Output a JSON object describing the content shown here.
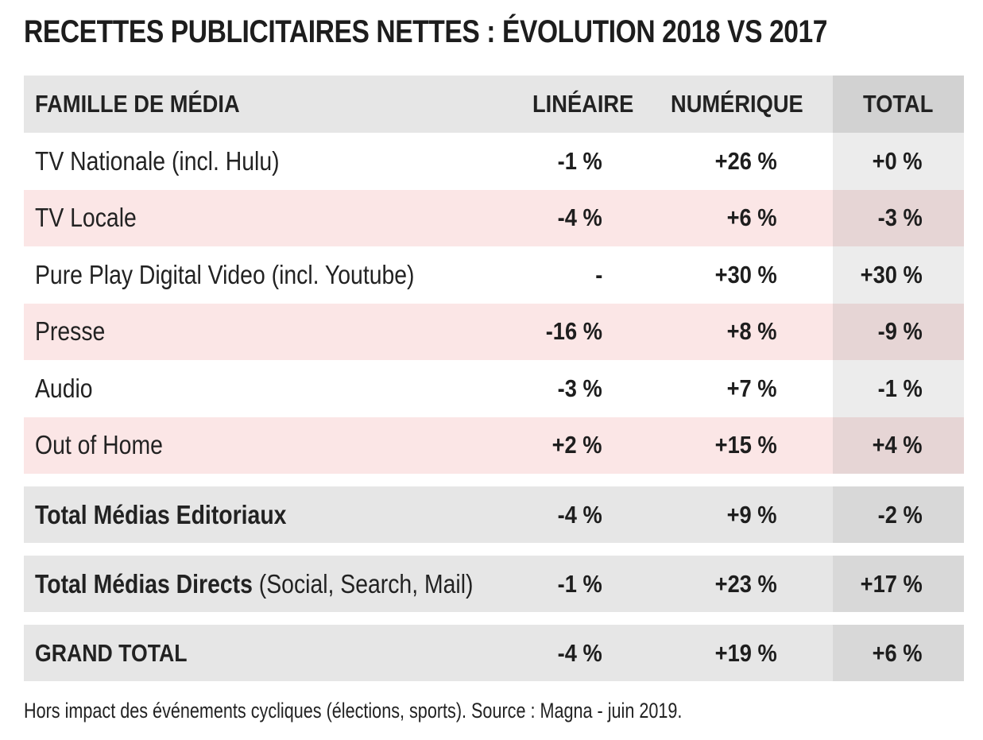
{
  "title": "RECETTES PUBLICITAIRES NETTES : ÉVOLUTION 2018 VS 2017",
  "source": "Hors impact des événements cycliques (élections, sports). Source : Magna - juin 2019.",
  "chart_data": {
    "type": "table",
    "title": "RECETTES PUBLICITAIRES NETTES : ÉVOLUTION 2018 VS 2017",
    "columns": [
      "FAMILLE DE MÉDIA",
      "LINÉAIRE",
      "NUMÉRIQUE",
      "TOTAL"
    ],
    "rows": [
      {
        "label": "TV Nationale (incl. Hulu)",
        "lineaire": "-1 %",
        "numerique": "+26 %",
        "total": "+0 %"
      },
      {
        "label": "TV Locale",
        "lineaire": "-4 %",
        "numerique": "+6 %",
        "total": "-3 %"
      },
      {
        "label": "Pure Play Digital Video (incl. Youtube)",
        "lineaire": "-",
        "numerique": "+30 %",
        "total": "+30 %"
      },
      {
        "label": "Presse",
        "lineaire": "-16 %",
        "numerique": "+8 %",
        "total": "-9 %"
      },
      {
        "label": "Audio",
        "lineaire": "-3 %",
        "numerique": "+7 %",
        "total": "-1 %"
      },
      {
        "label": "Out of Home",
        "lineaire": "+2 %",
        "numerique": "+15 %",
        "total": "+4 %"
      }
    ],
    "totals": [
      {
        "label": "Total Médias Editoriaux",
        "label_extra": "",
        "lineaire": "-4 %",
        "numerique": "+9 %",
        "total": "-2 %"
      },
      {
        "label": "Total Médias Directs",
        "label_extra": " (Social, Search, Mail)",
        "lineaire": "-1 %",
        "numerique": "+23 %",
        "total": "+17 %"
      },
      {
        "label": "GRAND TOTAL",
        "label_extra": "",
        "lineaire": "-4 %",
        "numerique": "+19 %",
        "total": "+6 %"
      }
    ]
  },
  "colors": {
    "header_bg": "#e6e6e6",
    "total_col_header_bg": "#d2d2d2",
    "alt_row_bg": "#fbe6e6",
    "total_col_bg": "#ececec",
    "total_col_alt_bg": "#e6d5d5",
    "total_row_bg": "#e6e6e6"
  }
}
